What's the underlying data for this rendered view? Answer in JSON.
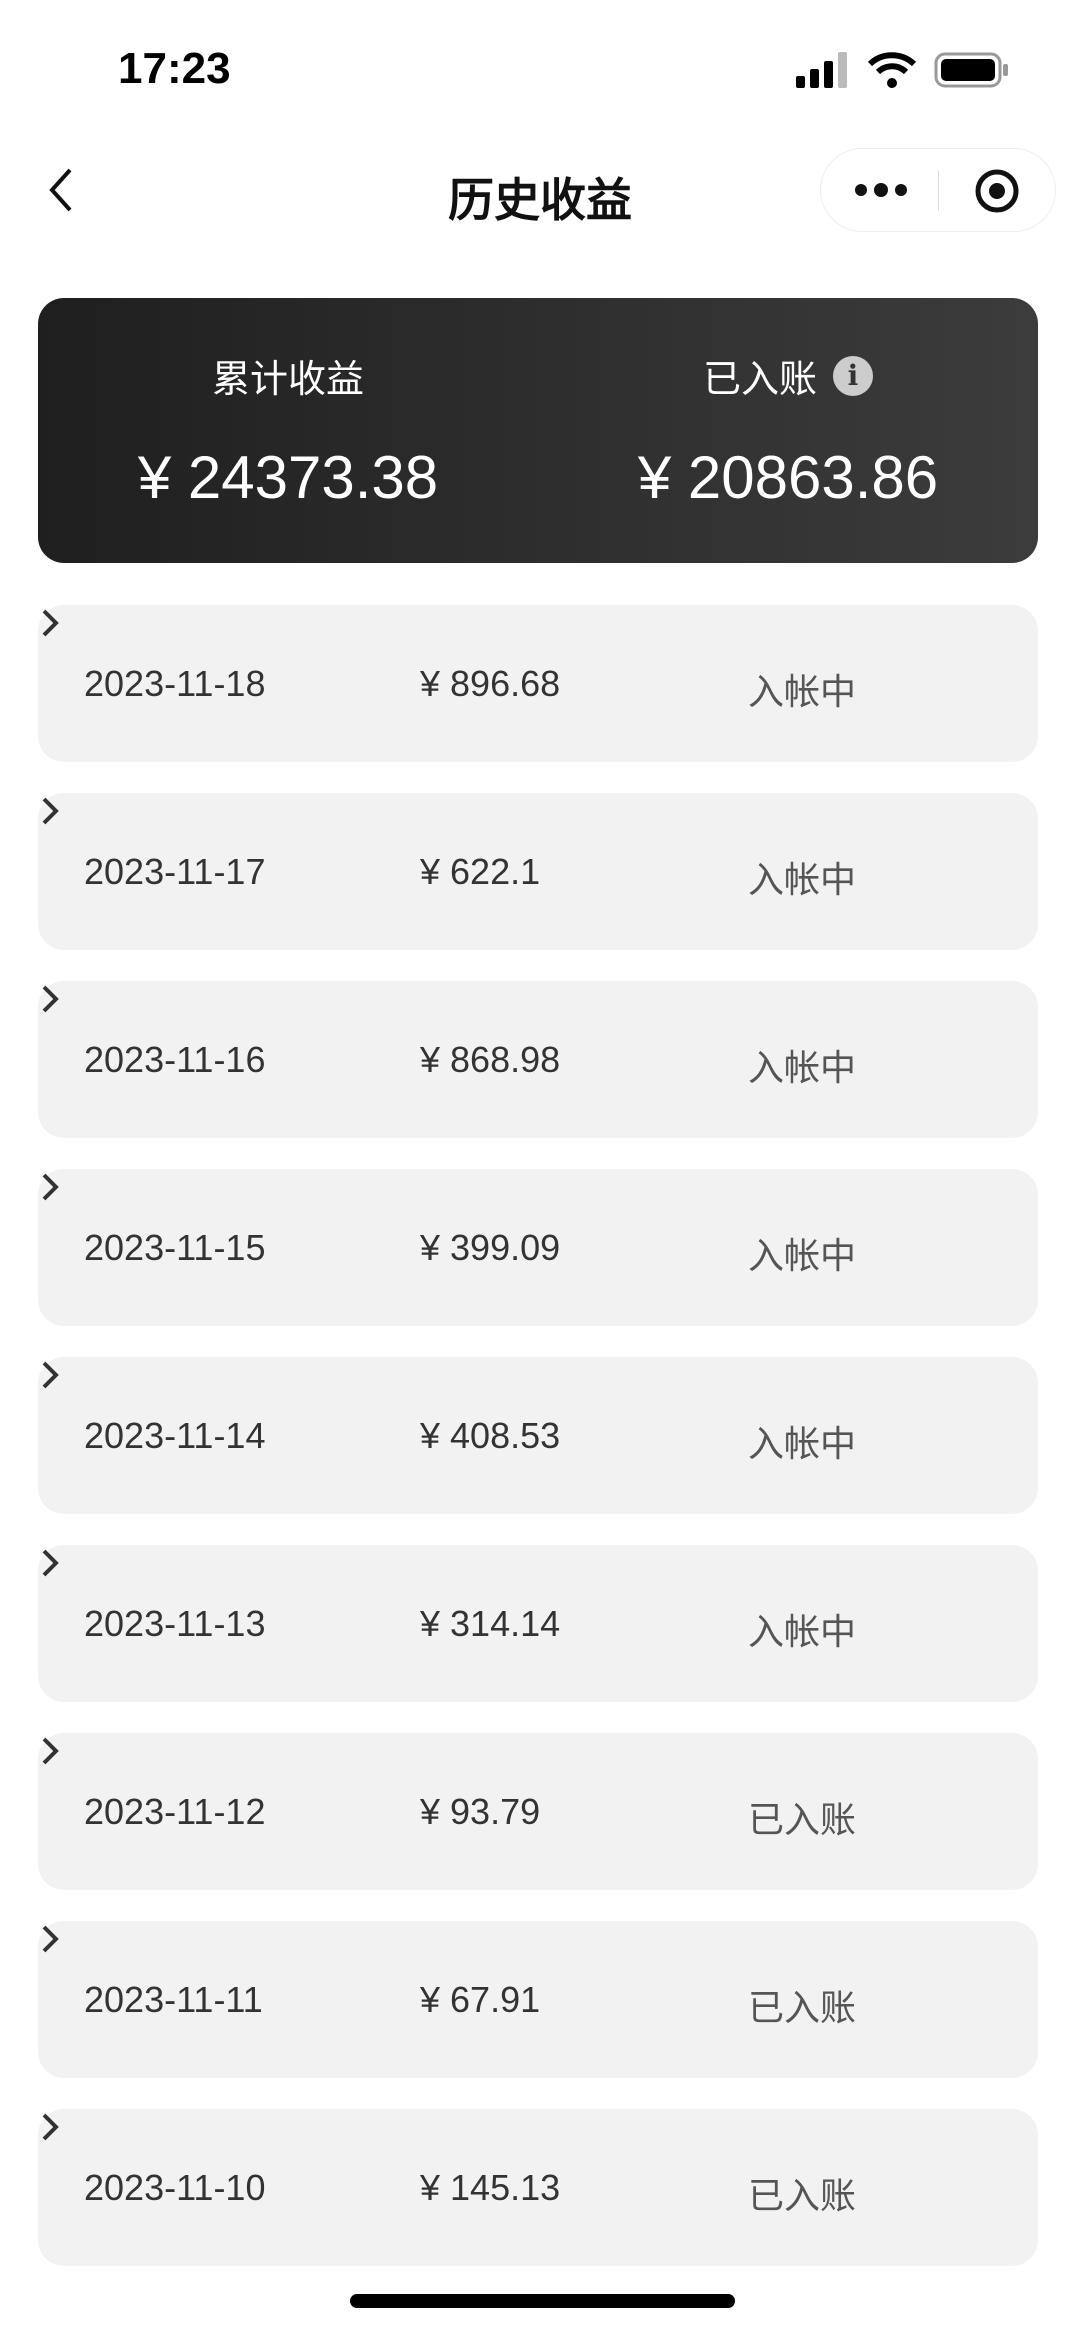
{
  "status_bar": {
    "time": "17:23"
  },
  "nav": {
    "title": "历史收益"
  },
  "summary": {
    "total_label": "累计收益",
    "total_value": "¥ 24373.38",
    "settled_label": "已入账",
    "settled_value": "¥ 20863.86"
  },
  "records": [
    {
      "date": "2023-11-18",
      "amount": "¥ 896.68",
      "status": "入帐中"
    },
    {
      "date": "2023-11-17",
      "amount": "¥ 622.1",
      "status": "入帐中"
    },
    {
      "date": "2023-11-16",
      "amount": "¥ 868.98",
      "status": "入帐中"
    },
    {
      "date": "2023-11-15",
      "amount": "¥ 399.09",
      "status": "入帐中"
    },
    {
      "date": "2023-11-14",
      "amount": "¥ 408.53",
      "status": "入帐中"
    },
    {
      "date": "2023-11-13",
      "amount": "¥ 314.14",
      "status": "入帐中"
    },
    {
      "date": "2023-11-12",
      "amount": "¥ 93.79",
      "status": "已入账"
    },
    {
      "date": "2023-11-11",
      "amount": "¥ 67.91",
      "status": "已入账"
    },
    {
      "date": "2023-11-10",
      "amount": "¥ 145.13",
      "status": "已入账"
    }
  ]
}
